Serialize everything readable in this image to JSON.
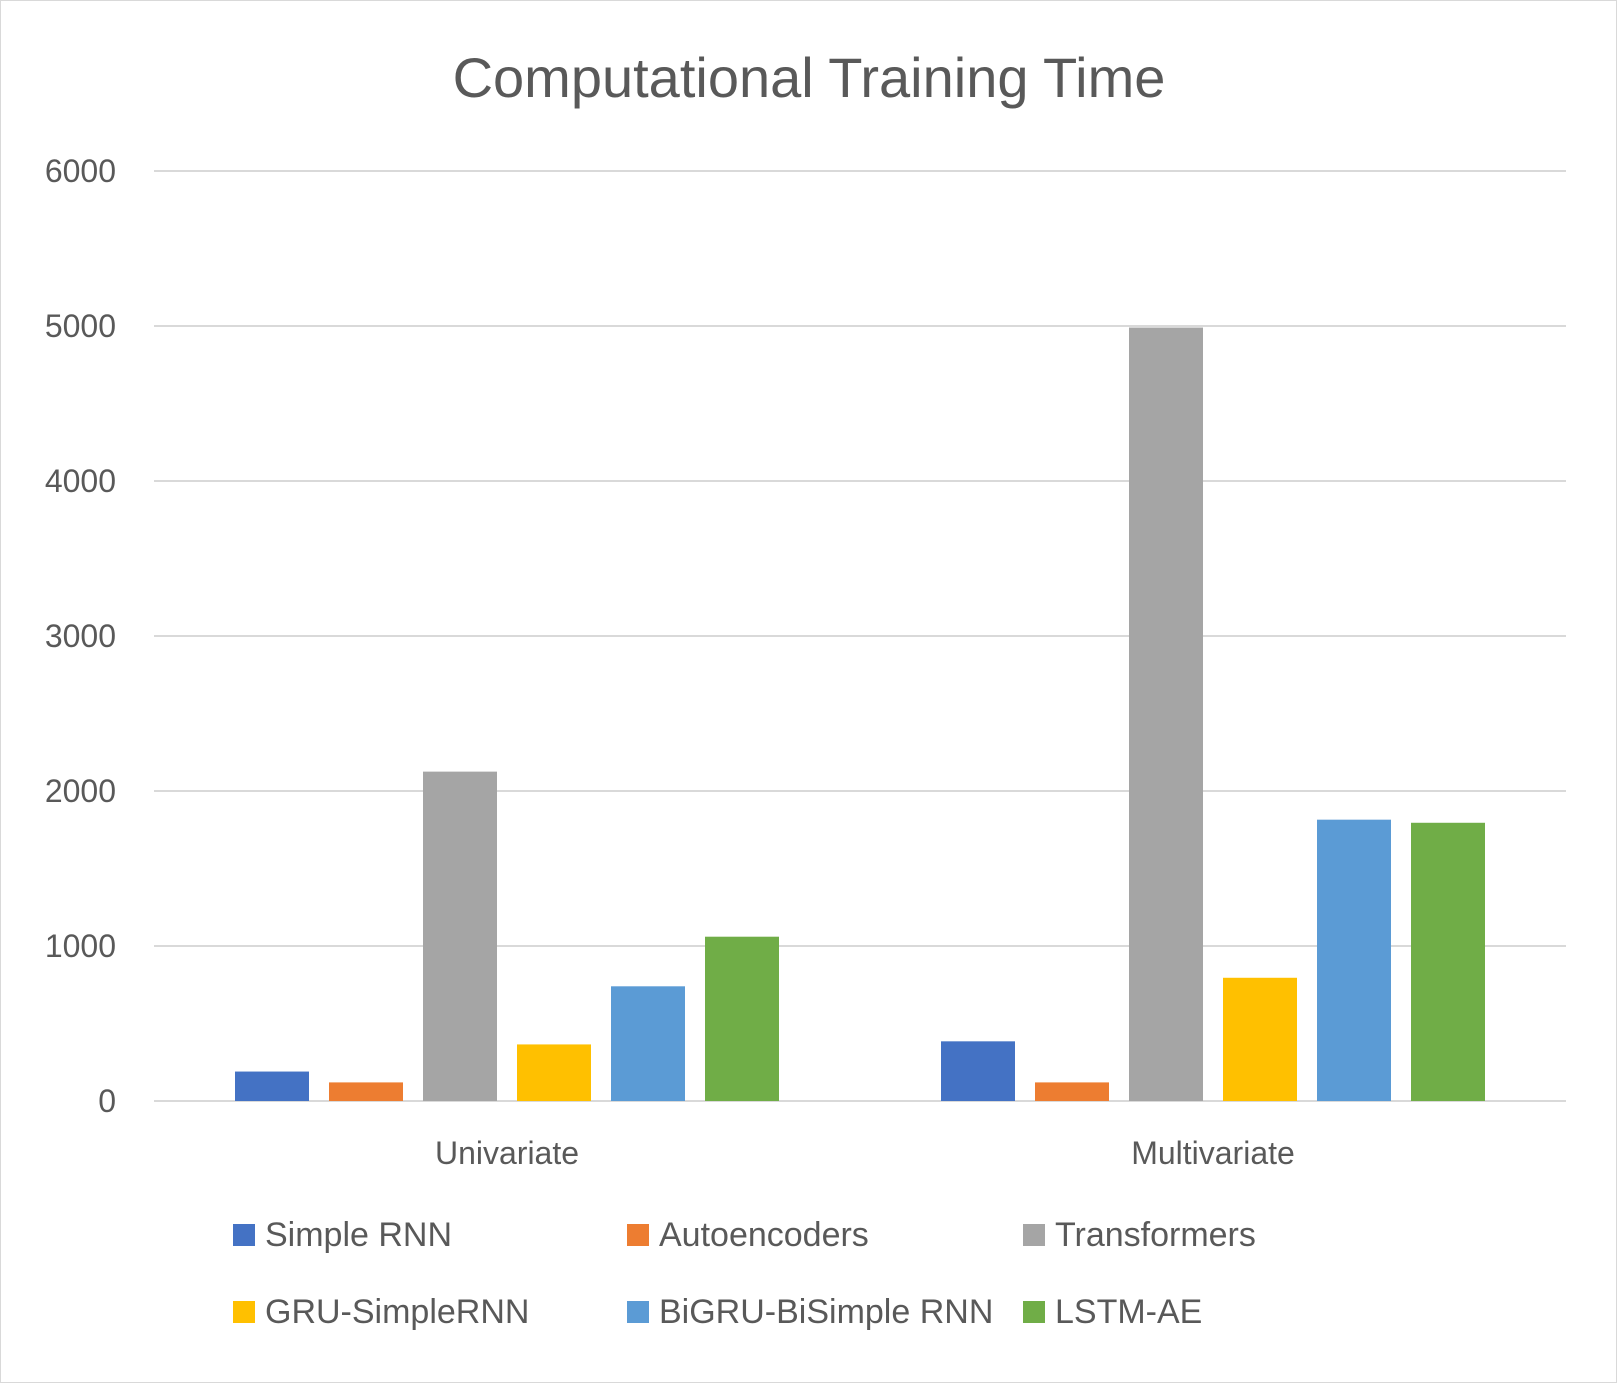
{
  "chart_data": {
    "type": "bar",
    "title": "Computational Training Time",
    "xlabel": "",
    "ylabel": "",
    "categories": [
      "Univariate",
      "Multivariate"
    ],
    "series": [
      {
        "name": "Simple RNN",
        "color": "#4472C4",
        "values": [
          190,
          385
        ]
      },
      {
        "name": "Autoencoders",
        "color": "#ED7D31",
        "values": [
          120,
          120
        ]
      },
      {
        "name": "Transformers",
        "color": "#A5A5A5",
        "values": [
          2125,
          4990
        ]
      },
      {
        "name": "GRU-SimpleRNN",
        "color": "#FFC000",
        "values": [
          365,
          795
        ]
      },
      {
        "name": "BiGRU-BiSimple RNN",
        "color": "#5B9BD5",
        "values": [
          740,
          1815
        ]
      },
      {
        "name": "LSTM-AE",
        "color": "#70AD47",
        "values": [
          1060,
          1795
        ]
      }
    ],
    "ylim": [
      0,
      6000
    ],
    "yticks": [
      0,
      1000,
      2000,
      3000,
      4000,
      5000,
      6000
    ],
    "grid": true,
    "legend": "bottom"
  }
}
